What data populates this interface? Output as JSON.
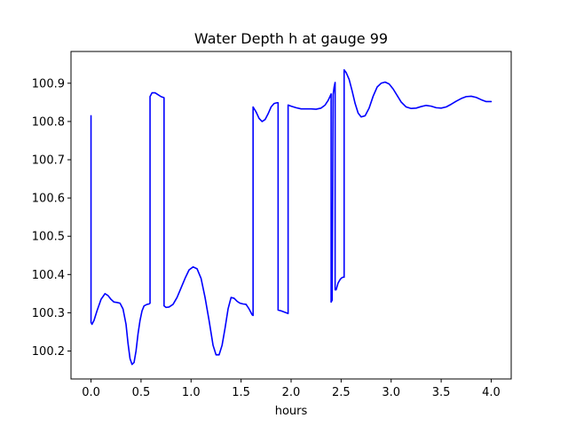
{
  "chart_data": {
    "type": "line",
    "title": "Water Depth h at gauge 99",
    "xlabel": "hours",
    "ylabel": "",
    "xlim": [
      -0.2,
      4.2
    ],
    "ylim": [
      100.127,
      100.983
    ],
    "xticks": [
      0.0,
      0.5,
      1.0,
      1.5,
      2.0,
      2.5,
      3.0,
      3.5,
      4.0
    ],
    "xtick_labels": [
      "0.0",
      "0.5",
      "1.0",
      "1.5",
      "2.0",
      "2.5",
      "3.0",
      "3.5",
      "4.0"
    ],
    "yticks": [
      100.2,
      100.3,
      100.4,
      100.5,
      100.6,
      100.7,
      100.8,
      100.9
    ],
    "ytick_labels": [
      "100.2",
      "100.3",
      "100.4",
      "100.5",
      "100.6",
      "100.7",
      "100.8",
      "100.9"
    ],
    "grid": false,
    "series": [
      {
        "color": "#0000ff",
        "x": [
          0.0,
          0.0,
          0.01,
          0.03,
          0.06,
          0.1,
          0.14,
          0.17,
          0.2,
          0.23,
          0.26,
          0.29,
          0.32,
          0.35,
          0.37,
          0.39,
          0.41,
          0.43,
          0.45,
          0.47,
          0.49,
          0.51,
          0.53,
          0.56,
          0.58,
          0.59,
          0.59,
          0.61,
          0.64,
          0.67,
          0.7,
          0.73,
          0.73,
          0.75,
          0.78,
          0.82,
          0.86,
          0.9,
          0.94,
          0.98,
          1.02,
          1.06,
          1.1,
          1.14,
          1.18,
          1.22,
          1.25,
          1.28,
          1.31,
          1.34,
          1.37,
          1.4,
          1.43,
          1.46,
          1.49,
          1.52,
          1.55,
          1.58,
          1.61,
          1.62,
          1.62,
          1.65,
          1.68,
          1.71,
          1.74,
          1.77,
          1.8,
          1.83,
          1.86,
          1.87,
          1.87,
          1.9,
          1.95,
          1.97,
          1.97,
          2.0,
          2.05,
          2.1,
          2.15,
          2.2,
          2.25,
          2.3,
          2.34,
          2.37,
          2.39,
          2.4,
          2.4,
          2.41,
          2.42,
          2.43,
          2.44,
          2.44,
          2.45,
          2.47,
          2.49,
          2.5,
          2.51,
          2.52,
          2.53,
          2.53,
          2.55,
          2.58,
          2.61,
          2.64,
          2.67,
          2.7,
          2.74,
          2.78,
          2.82,
          2.86,
          2.9,
          2.94,
          2.98,
          3.02,
          3.06,
          3.1,
          3.15,
          3.2,
          3.25,
          3.3,
          3.35,
          3.4,
          3.45,
          3.5,
          3.55,
          3.6,
          3.65,
          3.7,
          3.75,
          3.8,
          3.85,
          3.9,
          3.95,
          4.0
        ],
        "y": [
          100.815,
          100.275,
          100.27,
          100.28,
          100.305,
          100.335,
          100.35,
          100.345,
          100.335,
          100.328,
          100.327,
          100.325,
          100.31,
          100.27,
          100.22,
          100.18,
          100.165,
          100.17,
          100.2,
          100.245,
          100.28,
          100.305,
          100.318,
          100.322,
          100.323,
          100.325,
          100.865,
          100.875,
          100.875,
          100.87,
          100.865,
          100.862,
          100.318,
          100.314,
          100.315,
          100.322,
          100.34,
          100.365,
          100.39,
          100.412,
          100.42,
          100.415,
          100.39,
          100.34,
          100.28,
          100.215,
          100.19,
          100.19,
          100.215,
          100.26,
          100.31,
          100.34,
          100.338,
          100.33,
          100.325,
          100.323,
          100.322,
          100.31,
          100.295,
          100.293,
          100.838,
          100.825,
          100.808,
          100.8,
          100.805,
          100.82,
          100.838,
          100.847,
          100.849,
          100.849,
          100.307,
          100.305,
          100.3,
          100.298,
          100.843,
          100.84,
          100.836,
          100.833,
          100.833,
          100.833,
          100.832,
          100.835,
          100.843,
          100.855,
          100.866,
          100.872,
          100.328,
          100.333,
          100.87,
          100.89,
          100.902,
          100.36,
          100.36,
          100.378,
          100.387,
          100.39,
          100.392,
          100.393,
          100.393,
          100.935,
          100.928,
          100.91,
          100.88,
          100.847,
          100.822,
          100.812,
          100.815,
          100.835,
          100.866,
          100.89,
          100.9,
          100.903,
          100.898,
          100.885,
          100.868,
          100.851,
          100.838,
          100.834,
          100.835,
          100.839,
          100.842,
          100.84,
          100.836,
          100.835,
          100.838,
          100.845,
          100.853,
          100.86,
          100.865,
          100.866,
          100.863,
          100.857,
          100.852,
          100.852
        ]
      }
    ]
  }
}
